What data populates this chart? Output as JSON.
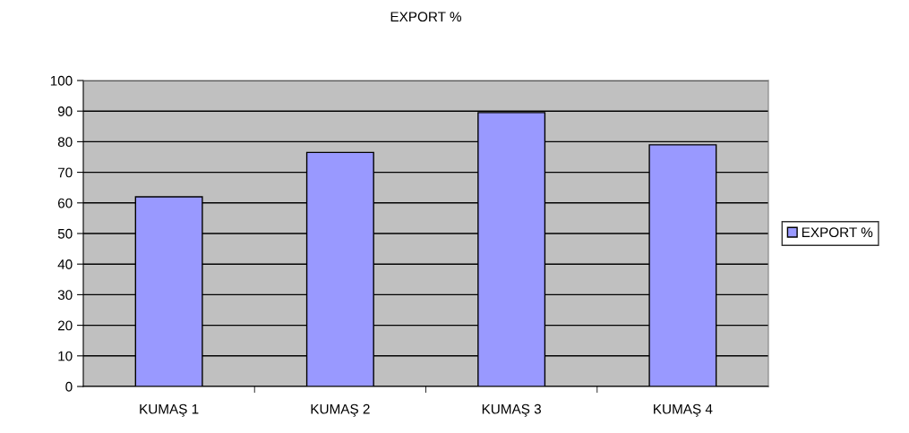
{
  "chart_data": {
    "type": "bar",
    "title": "EXPORT %",
    "categories": [
      "KUMAŞ 1",
      "KUMAŞ 2",
      "KUMAŞ 3",
      "KUMAŞ 4"
    ],
    "series": [
      {
        "name": "EXPORT %",
        "color": "#9999ff",
        "values": [
          62,
          76.5,
          89.5,
          79
        ]
      }
    ],
    "ylim": [
      0,
      100
    ],
    "yticks": [
      0,
      10,
      20,
      30,
      40,
      50,
      60,
      70,
      80,
      90,
      100
    ],
    "grid": "y",
    "legend": "right"
  }
}
